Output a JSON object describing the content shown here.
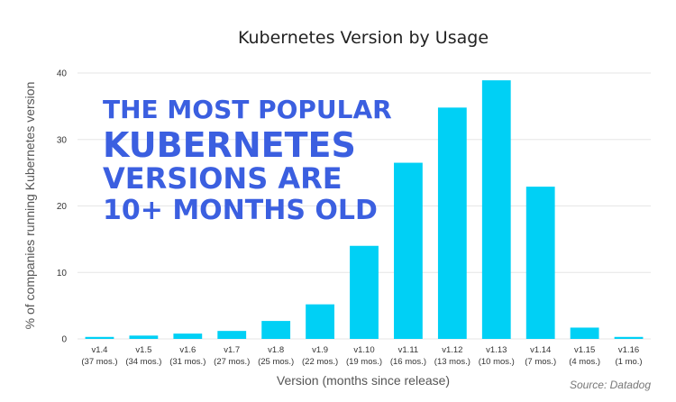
{
  "chart_data": {
    "type": "bar",
    "title": "Kubernetes Version by Usage",
    "xlabel": "Version (months since release)",
    "ylabel": "% of companies running Kubernetes version",
    "ylim": [
      0,
      40
    ],
    "yticks": [
      0,
      10,
      20,
      30,
      40
    ],
    "grid": true,
    "categories": [
      "v1.4",
      "v1.5",
      "v1.6",
      "v1.7",
      "v1.8",
      "v1.9",
      "v1.10",
      "v1.11",
      "v1.12",
      "v1.13",
      "v1.14",
      "v1.15",
      "v1.16"
    ],
    "category_sublabels": [
      "(37 mos.)",
      "(34 mos.)",
      "(31 mos.)",
      "(27 mos.)",
      "(25 mos.)",
      "(22 mos.)",
      "(19 mos.)",
      "(16 mos.)",
      "(13 mos.)",
      "(10 mos.)",
      "(7 mos.)",
      "(4 mos.)",
      "(1 mo.)"
    ],
    "values": [
      0.3,
      0.5,
      0.8,
      1.2,
      2.7,
      5.2,
      14.0,
      26.5,
      34.8,
      38.9,
      22.9,
      1.7,
      0.3
    ],
    "bar_color": "#00d0f5",
    "annotation": [
      "THE MOST POPULAR",
      "KUBERNETES",
      "VERSIONS ARE",
      "10+ MONTHS OLD"
    ],
    "annotation_color": "#3b5fe0",
    "source": "Source: Datadog"
  }
}
